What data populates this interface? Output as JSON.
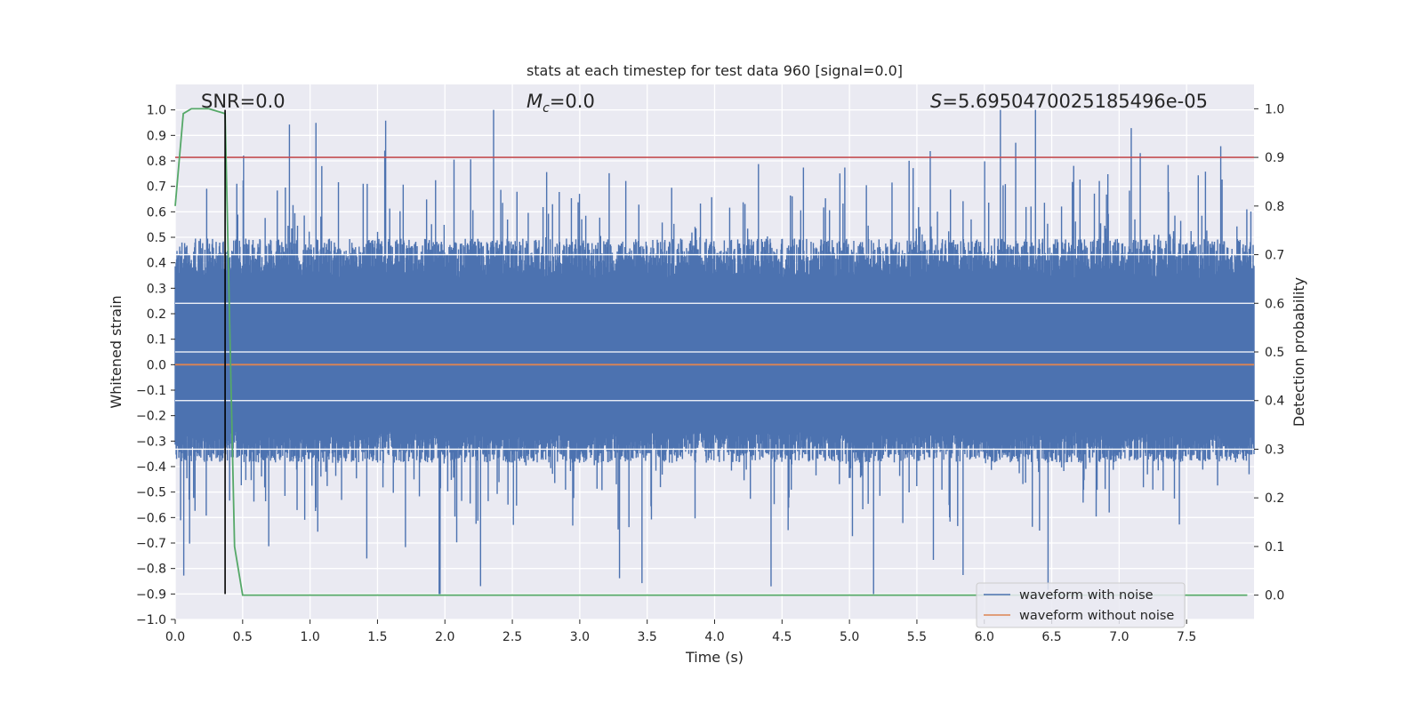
{
  "chart_data": {
    "type": "line",
    "title": "stats at each timestep for test data 960 [signal=0.0]",
    "xlabel": "Time (s)",
    "ylabel_left": "Whitened strain",
    "ylabel_right": "Detection probability",
    "xlim": [
      0.0,
      8.0
    ],
    "ylim_left": [
      -1.0,
      1.1
    ],
    "ylim_right": [
      -0.05,
      1.05
    ],
    "x_ticks": [
      "0.0",
      "0.5",
      "1.0",
      "1.5",
      "2.0",
      "2.5",
      "3.0",
      "3.5",
      "4.0",
      "4.5",
      "5.0",
      "5.5",
      "6.0",
      "6.5",
      "7.0",
      "7.5"
    ],
    "y_ticks_left": [
      "−1.0",
      "−0.9",
      "−0.8",
      "−0.7",
      "−0.6",
      "−0.5",
      "−0.4",
      "−0.3",
      "−0.2",
      "−0.1",
      "0.0",
      "0.1",
      "0.2",
      "0.3",
      "0.4",
      "0.5",
      "0.6",
      "0.7",
      "0.8",
      "0.9",
      "1.0"
    ],
    "y_ticks_right": [
      "0.0",
      "0.1",
      "0.2",
      "0.3",
      "0.4",
      "0.5",
      "0.6",
      "0.7",
      "0.8",
      "0.9",
      "1.0"
    ],
    "annotations": {
      "snr": "SNR=0.0",
      "mc_symbol": "M",
      "mc_sub": "c",
      "mc_value": "=0.0",
      "s_symbol": "S",
      "s_value": "=5.6950470025185496e-05"
    },
    "series": [
      {
        "name": "waveform with noise",
        "axis": "left",
        "color": "#4c72b0",
        "description_free": true,
        "noise_seed": 960,
        "noise_envelope": {
          "typical_max": 0.45,
          "peak_max": 1.0,
          "typical_min": -0.35,
          "peak_min": -0.9
        }
      },
      {
        "name": "waveform without noise",
        "axis": "left",
        "color": "#dd8452",
        "x": [
          0.0,
          8.0
        ],
        "y": [
          0.0,
          0.0
        ]
      },
      {
        "axis": "right",
        "color": "#55a868",
        "x": [
          0.0,
          0.06,
          0.12,
          0.25,
          0.37,
          0.44,
          0.5,
          7.95
        ],
        "y": [
          0.8,
          0.99,
          1.0,
          1.0,
          0.99,
          0.1,
          0.0,
          0.0
        ]
      }
    ],
    "threshold_line": {
      "axis": "right",
      "y": 0.9,
      "color": "#c44e52"
    },
    "marker_line": {
      "axis": "left",
      "x": 0.37,
      "y_from": -0.9,
      "y_to": 1.0,
      "color": "#000000"
    },
    "grid": true,
    "legend_placement": "lower-right"
  }
}
